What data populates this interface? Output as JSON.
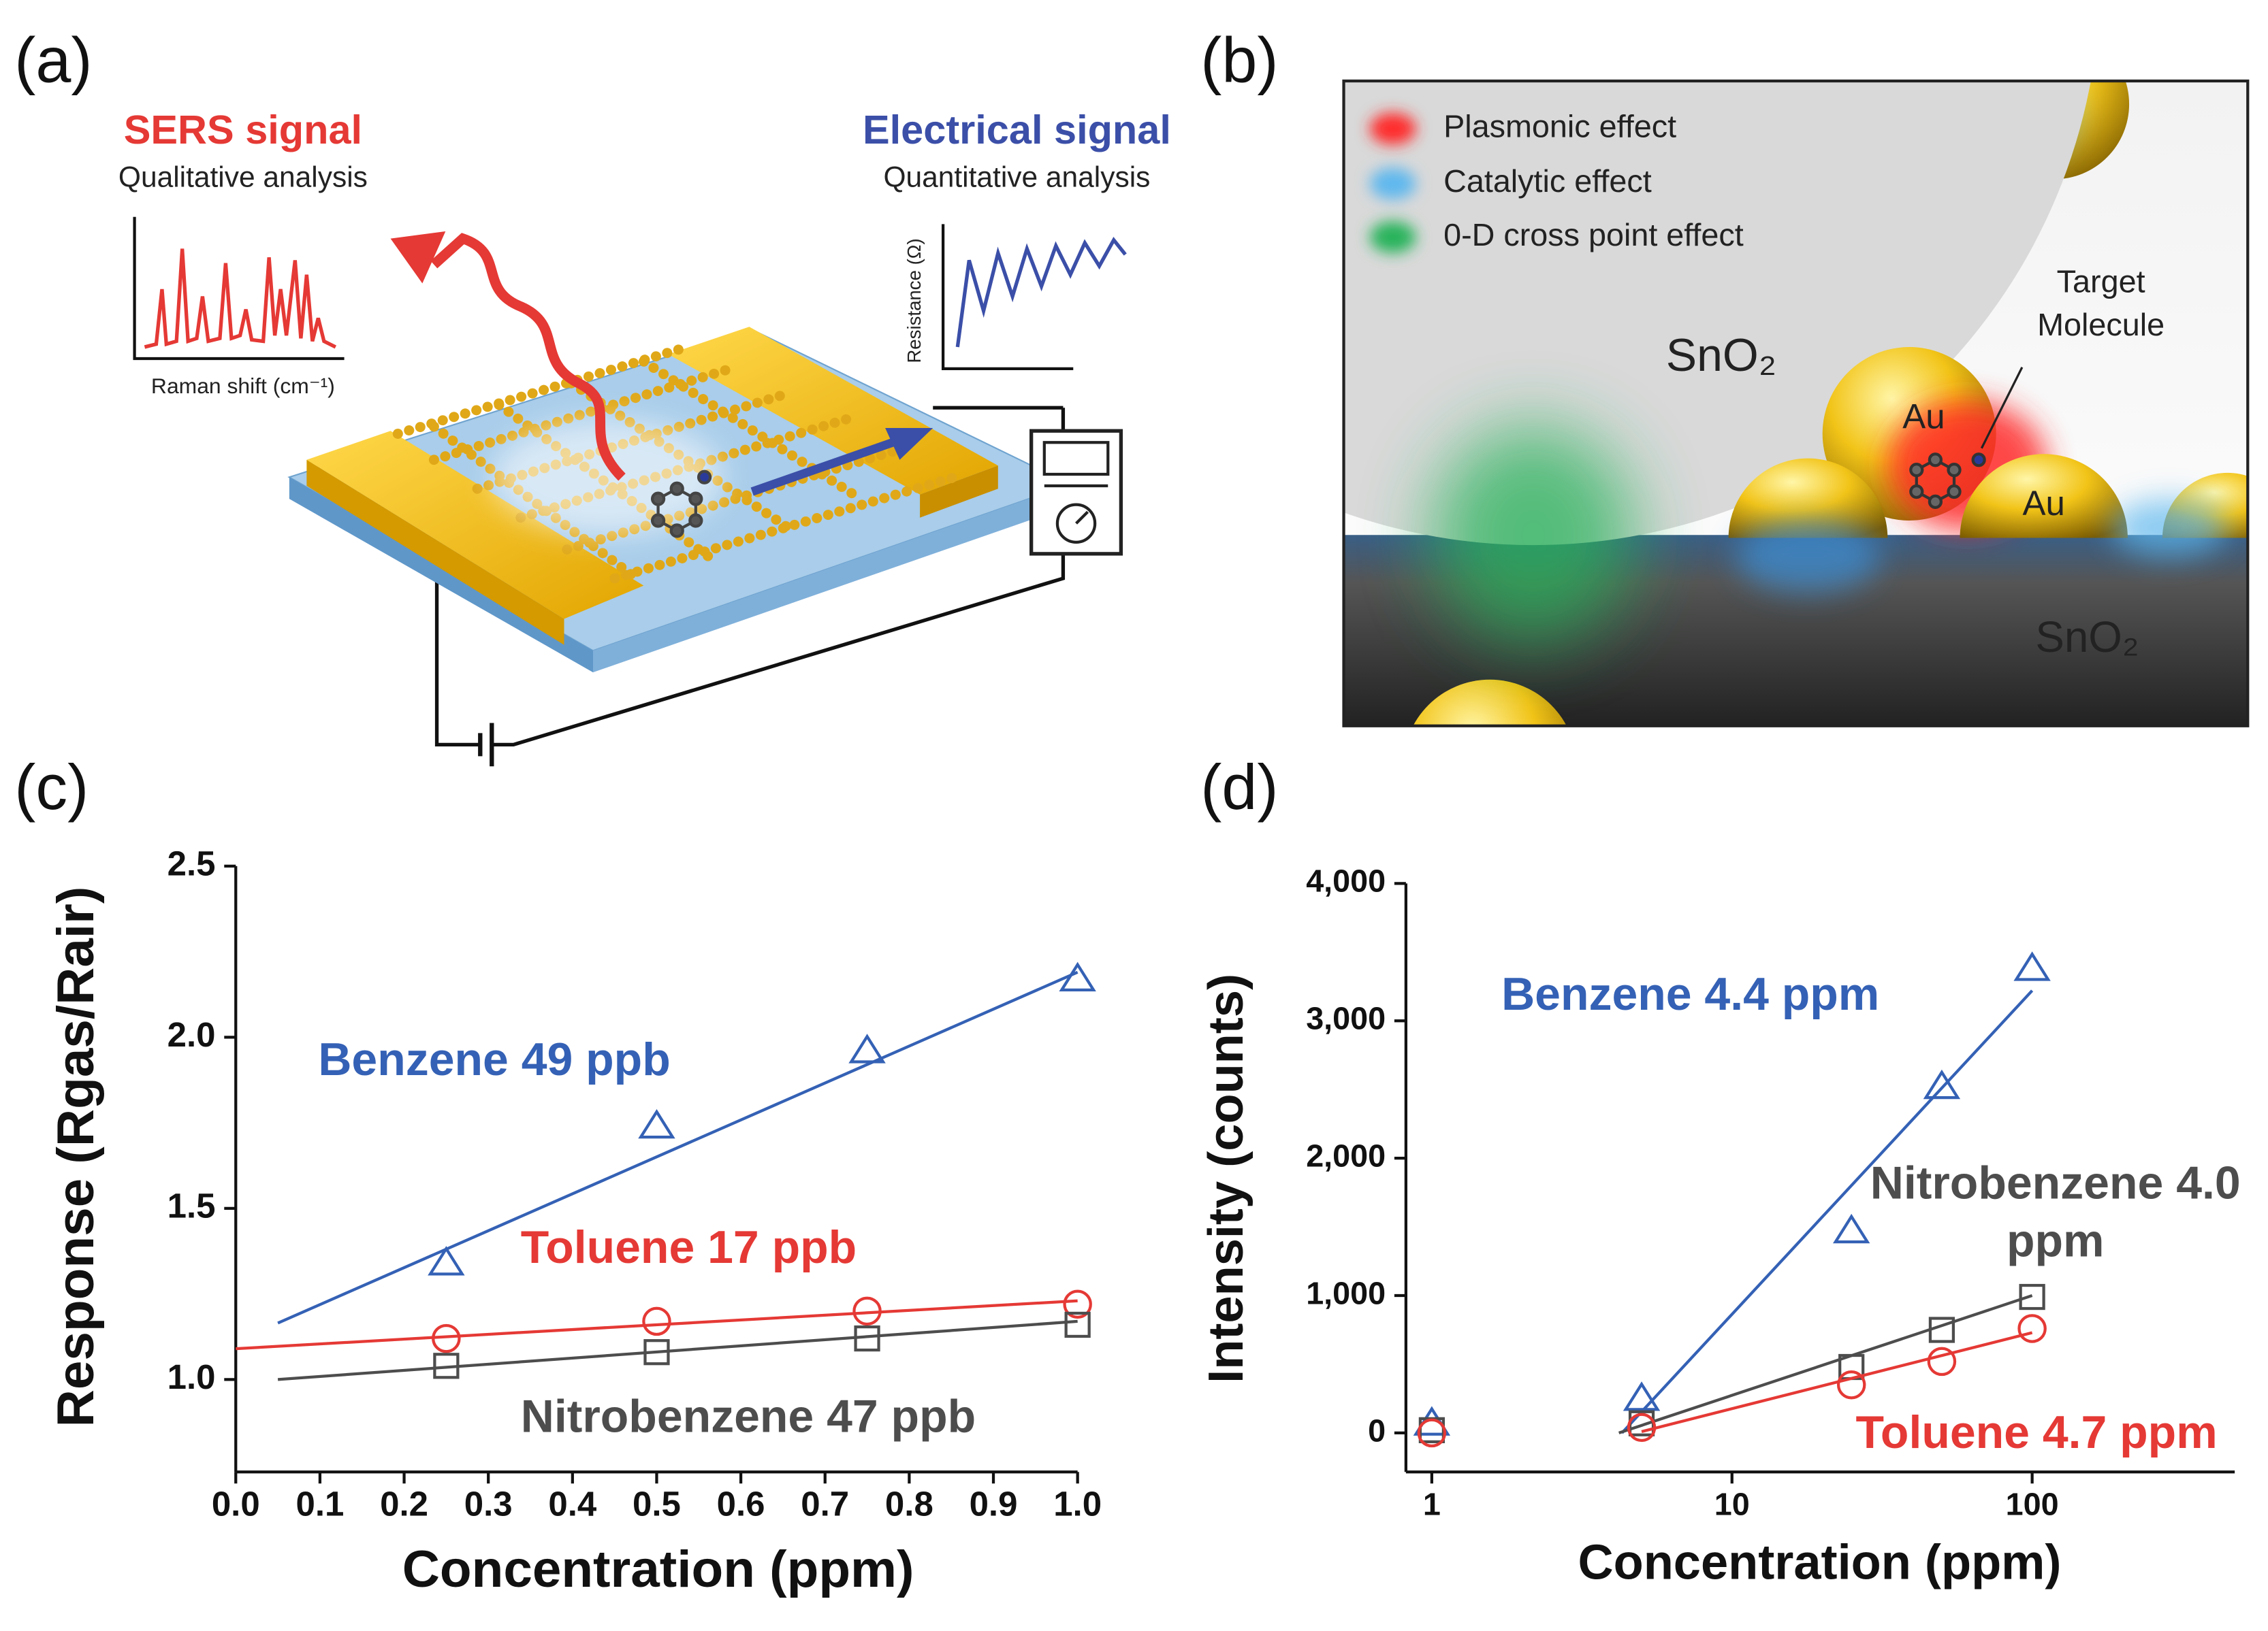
{
  "panel_labels": [
    "(a)",
    "(b)",
    "(c)",
    "(d)"
  ],
  "panel_a": {
    "sers_title": "SERS signal",
    "sers_subtitle": "Qualitative analysis",
    "raman_axis": "Raman shift (cm⁻¹)",
    "electrical_title": "Electrical signal",
    "electrical_subtitle": "Quantitative analysis",
    "resistance_axis": "Resistance (Ω)"
  },
  "panel_b": {
    "legend": [
      "Plasmonic effect",
      "Catalytic effect",
      "0-D cross point effect"
    ],
    "sno2_top": "SnO₂",
    "target": "Target Molecule",
    "au_1": "Au",
    "au_2": "Au",
    "sno2_bottom": "SnO₂"
  },
  "chart_data": [
    {
      "type": "scatter",
      "x_label": "Concentration (ppm)",
      "y_label": "Response (Rgas/Rair)",
      "xlim": [
        0,
        1.0
      ],
      "xticks": [
        {
          "value": 0,
          "label": "0.0"
        },
        0.1,
        0.2,
        0.3,
        0.4,
        0.5,
        0.6,
        0.7,
        0.8,
        0.9,
        {
          "value": 1,
          "label": "1.0"
        }
      ],
      "ylim": [
        0.73,
        2.5
      ],
      "yticks": [
        {
          "value": 1,
          "label": "1.0"
        },
        1.5,
        {
          "value": 2,
          "label": "2.0"
        },
        2.5
      ],
      "series": [
        {
          "name": "Benzene 49 ppb",
          "color": "#3461b5",
          "marker": "triangle",
          "x": [
            0.25,
            0.5,
            0.75,
            1.0
          ],
          "values": [
            1.34,
            1.74,
            1.96,
            2.17
          ],
          "fit": {
            "x": [
              0.05,
              1.0
            ],
            "values": [
              1.165,
              2.19
            ]
          }
        },
        {
          "name": "Toluene 17 ppb",
          "color": "#e53935",
          "marker": "circle",
          "x": [
            0.25,
            0.5,
            0.75,
            1.0
          ],
          "values": [
            1.12,
            1.17,
            1.2,
            1.22
          ],
          "fit": {
            "x": [
              0.0,
              1.0
            ],
            "values": [
              1.09,
              1.23
            ]
          }
        },
        {
          "name": "Nitrobenzene 47 ppb",
          "color": "#4d4d4d",
          "marker": "square",
          "x": [
            0.25,
            0.5,
            0.75,
            1.0
          ],
          "values": [
            1.04,
            1.08,
            1.12,
            1.16
          ],
          "fit": {
            "x": [
              0.05,
              1.0
            ],
            "values": [
              1.0,
              1.17
            ]
          }
        }
      ]
    },
    {
      "type": "scatter",
      "x_label": "Concentration (ppm)",
      "y_label": "Intensity (counts)",
      "x_scale": "log",
      "xlim": [
        0.82,
        473
      ],
      "xticks": [
        1,
        10,
        100
      ],
      "ylim": [
        -284,
        4000
      ],
      "yticks": [
        0,
        {
          "value": 1000,
          "label": "1,000"
        },
        {
          "value": 2000,
          "label": "2,000"
        },
        {
          "value": 3000,
          "label": "3,000"
        },
        {
          "value": 4000,
          "label": "4,000"
        }
      ],
      "series": [
        {
          "name": "Benzene 4.4 ppm",
          "color": "#3461b5",
          "marker": "triangle",
          "x": [
            1,
            5,
            25,
            50,
            100
          ],
          "values": [
            70,
            250,
            1470,
            2520,
            3380
          ],
          "fit": {
            "x": [
              4.3,
              100
            ],
            "values": [
              0,
              3220
            ]
          }
        },
        {
          "name": "Nitrobenzene 4.0 ppm",
          "color": "#4d4d4d",
          "marker": "square",
          "x": [
            1,
            5,
            25,
            50,
            100
          ],
          "values": [
            20,
            70,
            480,
            750,
            990
          ],
          "fit": {
            "x": [
              4.2,
              100
            ],
            "values": [
              0,
              1000
            ]
          }
        },
        {
          "name": "Toluene 4.7 ppm",
          "color": "#e53935",
          "marker": "circle",
          "x": [
            1,
            5,
            25,
            50,
            100
          ],
          "values": [
            0,
            40,
            350,
            520,
            760
          ],
          "fit": {
            "x": [
              5,
              100
            ],
            "values": [
              10,
              730
            ]
          }
        }
      ]
    }
  ]
}
